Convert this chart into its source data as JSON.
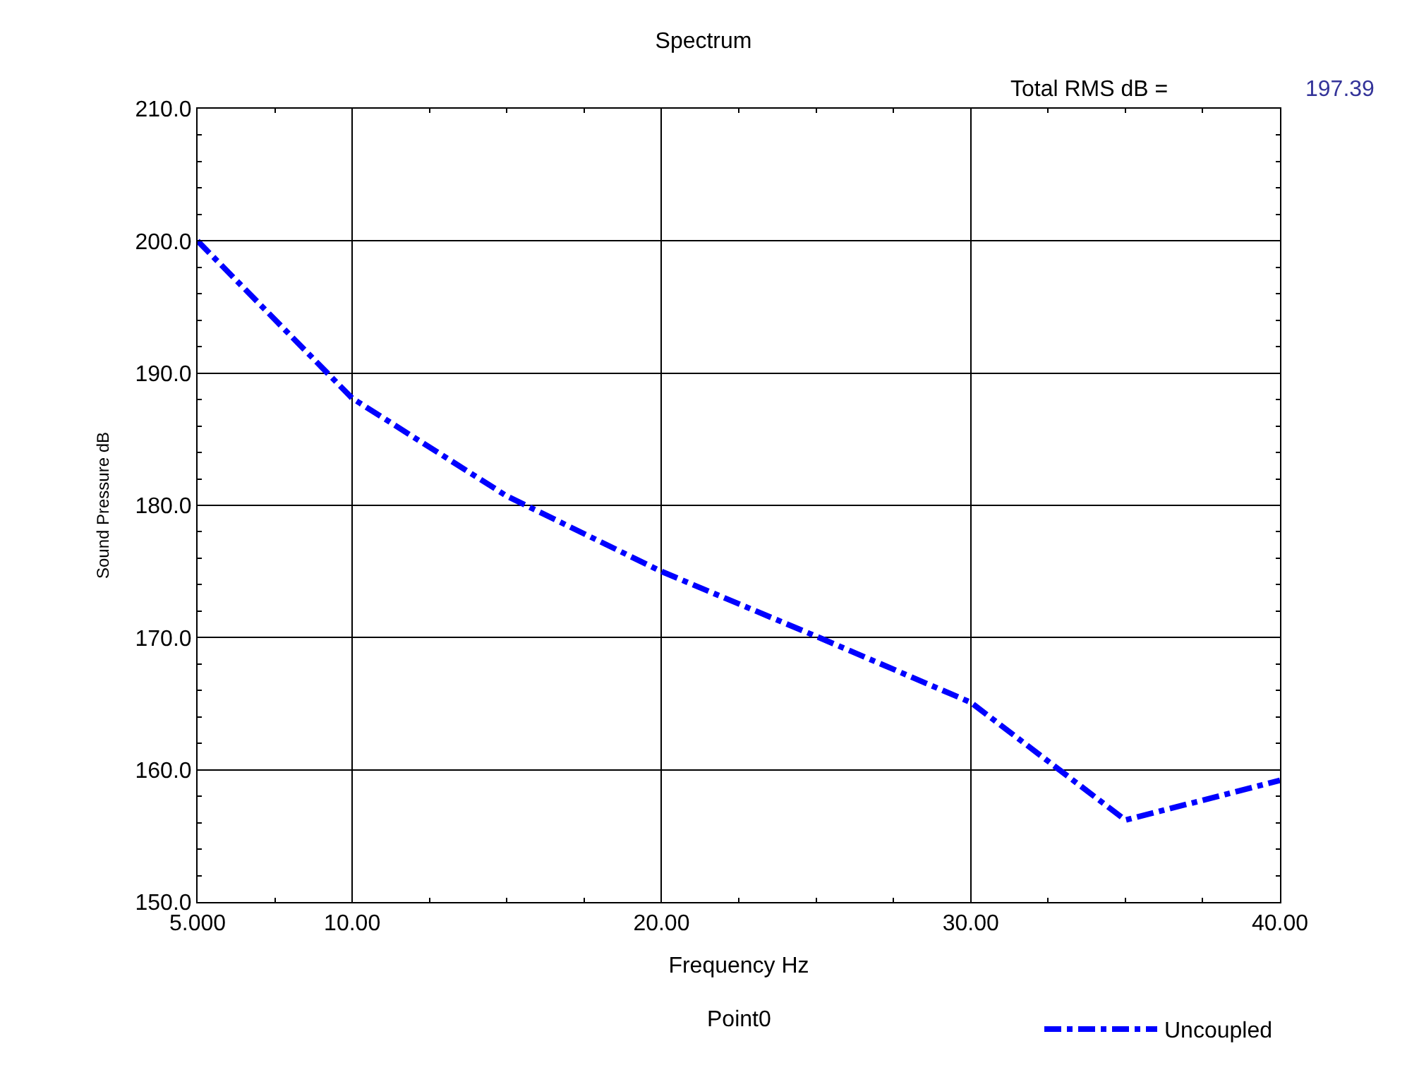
{
  "chart_data": {
    "type": "line",
    "title": "Spectrum",
    "xlabel": "Frequency Hz",
    "ylabel": "Sound Pressure dB",
    "x": [
      5,
      10,
      15,
      20,
      25,
      30,
      35,
      40
    ],
    "series": [
      {
        "name": "Uncoupled",
        "color": "#0000ff",
        "values": [
          200.0,
          188.1,
          180.7,
          175.0,
          170.1,
          165.1,
          156.2,
          159.2
        ]
      }
    ],
    "xlim": [
      5,
      40
    ],
    "xticks": [
      {
        "value": 5,
        "label": "5.000"
      },
      {
        "value": 10,
        "label": "10.00"
      },
      {
        "value": 20,
        "label": "20.00"
      },
      {
        "value": 30,
        "label": "30.00"
      },
      {
        "value": 40,
        "label": "40.00"
      }
    ],
    "ylim": [
      150,
      210
    ],
    "yticks": [
      {
        "value": 150,
        "label": "150.0"
      },
      {
        "value": 160,
        "label": "160.0"
      },
      {
        "value": 170,
        "label": "170.0"
      },
      {
        "value": 180,
        "label": "180.0"
      },
      {
        "value": 190,
        "label": "190.0"
      },
      {
        "value": 200,
        "label": "200.0"
      },
      {
        "value": 210,
        "label": "210.0"
      }
    ],
    "grid": true,
    "legend": "bottom right",
    "marker": "none",
    "line_style": "dashed",
    "annotations": [
      "Total RMS dB =",
      "197.39",
      "Point0"
    ]
  }
}
